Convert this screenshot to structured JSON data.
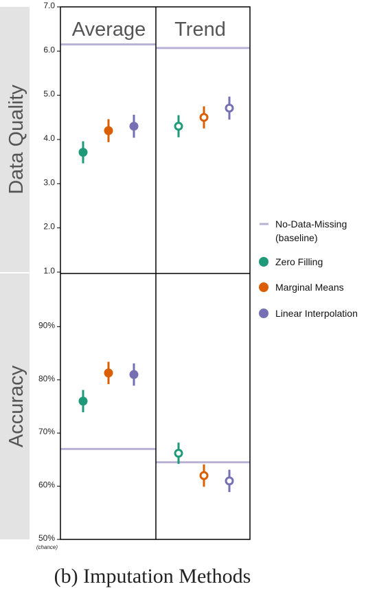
{
  "chart_data": {
    "type": "scatter",
    "caption": "(b)  Imputation Methods",
    "colors": {
      "Zero Filling": "#1e9a78",
      "Marginal Means": "#d95f02",
      "Linear Interpolation": "#7570b3",
      "baseline": "#b9b0d6"
    },
    "legend": {
      "position": "right",
      "items": [
        {
          "label": "No-Data-Missing\n(baseline)",
          "kind": "line",
          "color": "baseline"
        },
        {
          "label": "Zero Filling",
          "kind": "dot",
          "color": "Zero Filling"
        },
        {
          "label": "Marginal Means",
          "kind": "dot",
          "color": "Marginal Means"
        },
        {
          "label": "Linear Interpolation",
          "kind": "dot",
          "color": "Linear Interpolation"
        }
      ]
    },
    "columns": [
      "Average",
      "Trend"
    ],
    "rows": [
      {
        "title": "Data Quality",
        "ylim": [
          1.0,
          7.0
        ],
        "yticks": [
          {
            "value": 1.0,
            "label": "1.0"
          },
          {
            "value": 2.0,
            "label": "2.0"
          },
          {
            "value": 3.0,
            "label": "3.0"
          },
          {
            "value": 4.0,
            "label": "4.0"
          },
          {
            "value": 5.0,
            "label": "5.0"
          },
          {
            "value": 6.0,
            "label": "6.0"
          },
          {
            "value": 7.0,
            "label": "7.0"
          }
        ],
        "baseline": {
          "Average": 6.15,
          "Trend": 6.07
        },
        "series": [
          {
            "name": "Zero Filling",
            "Average": {
              "mean": 3.71,
              "lo": 3.46,
              "hi": 3.96
            },
            "Trend": {
              "mean": 4.3,
              "lo": 4.05,
              "hi": 4.55
            }
          },
          {
            "name": "Marginal Means",
            "Average": {
              "mean": 4.2,
              "lo": 3.94,
              "hi": 4.46
            },
            "Trend": {
              "mean": 4.5,
              "lo": 4.25,
              "hi": 4.75
            }
          },
          {
            "name": "Linear Interpolation",
            "Average": {
              "mean": 4.3,
              "lo": 4.04,
              "hi": 4.56
            },
            "Trend": {
              "mean": 4.71,
              "lo": 4.45,
              "hi": 4.97
            }
          }
        ]
      },
      {
        "title": "Accuracy",
        "ylim": [
          50,
          100
        ],
        "yticks": [
          {
            "value": 50,
            "label": "50%",
            "sub": "(chance)"
          },
          {
            "value": 60,
            "label": "60%"
          },
          {
            "value": 70,
            "label": "70%"
          },
          {
            "value": 80,
            "label": "80%"
          },
          {
            "value": 90,
            "label": "90%"
          }
        ],
        "baseline": {
          "Average": 67.0,
          "Trend": 64.5
        },
        "series": [
          {
            "name": "Zero Filling",
            "Average": {
              "mean": 76.0,
              "lo": 73.9,
              "hi": 78.1
            },
            "Trend": {
              "mean": 66.2,
              "lo": 64.2,
              "hi": 68.2
            }
          },
          {
            "name": "Marginal Means",
            "Average": {
              "mean": 81.3,
              "lo": 79.2,
              "hi": 83.4
            },
            "Trend": {
              "mean": 62.0,
              "lo": 59.9,
              "hi": 64.1
            }
          },
          {
            "name": "Linear Interpolation",
            "Average": {
              "mean": 81.0,
              "lo": 78.9,
              "hi": 83.1
            },
            "Trend": {
              "mean": 61.0,
              "lo": 58.9,
              "hi": 63.1
            }
          }
        ]
      }
    ]
  }
}
